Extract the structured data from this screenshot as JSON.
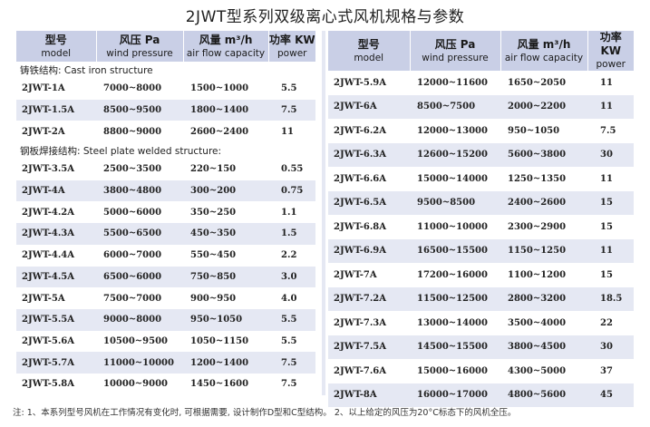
{
  "title": "2JWT型系列双级离心式风机规格与参数",
  "headers": {
    "model_zh": "型号",
    "model_en": "model",
    "pressure_zh": "风压 Pa",
    "pressure_en": "wind pressure",
    "flow_zh": "风量 m³/h",
    "flow_en": "air flow capacity",
    "power_zh": "功率 KW",
    "power_en": "power"
  },
  "left": {
    "cast_iron_label": "铸铁结构: Cast iron structure",
    "cast_iron_rows": [
      {
        "model": "2JWT-1A",
        "pressure": "7000~8000",
        "flow": "1500~1000",
        "power": "5.5"
      },
      {
        "model": "2JWT-1.5A",
        "pressure": "8500~9500",
        "flow": "1800~1400",
        "power": "7.5"
      },
      {
        "model": "2JWT-2A",
        "pressure": "8800~9000",
        "flow": "2600~2400",
        "power": "11"
      }
    ],
    "steel_label": "钢板焊接结构: Steel plate welded structure:",
    "steel_rows": [
      {
        "model": "2JWT-3.5A",
        "pressure": "2500~3500",
        "flow": "220~150",
        "power": "0.55"
      },
      {
        "model": "2JWT-4A",
        "pressure": "3800~4800",
        "flow": "300~200",
        "power": "0.75"
      },
      {
        "model": "2JWT-4.2A",
        "pressure": "5000~6000",
        "flow": "350~250",
        "power": "1.1"
      },
      {
        "model": "2JWT-4.3A",
        "pressure": "5500~6500",
        "flow": "450~350",
        "power": "1.5"
      },
      {
        "model": "2JWT-4.4A",
        "pressure": "6000~7000",
        "flow": "550~450",
        "power": "2.2"
      },
      {
        "model": "2JWT-4.5A",
        "pressure": "6500~6000",
        "flow": "750~850",
        "power": "3.0"
      },
      {
        "model": "2JWT-5A",
        "pressure": "7500~7000",
        "flow": "900~950",
        "power": "4.0"
      },
      {
        "model": "2JWT-5.5A",
        "pressure": "9000~8000",
        "flow": "950~1050",
        "power": "5.5"
      },
      {
        "model": "2JWT-5.6A",
        "pressure": "10500~9500",
        "flow": "1050~1150",
        "power": "5.5"
      },
      {
        "model": "2JWT-5.7A",
        "pressure": "11000~10000",
        "flow": "1200~1400",
        "power": "7.5"
      },
      {
        "model": "2JWT-5.8A",
        "pressure": "10000~9000",
        "flow": "1450~1600",
        "power": "7.5"
      }
    ]
  },
  "right": {
    "rows": [
      {
        "model": "2JWT-5.9A",
        "pressure": "12000~11600",
        "flow": "1650~2050",
        "power": "11"
      },
      {
        "model": "2JWT-6A",
        "pressure": "8500~7500",
        "flow": "2000~2200",
        "power": "11"
      },
      {
        "model": "2JWT-6.2A",
        "pressure": "12000~13000",
        "flow": "950~1050",
        "power": "7.5"
      },
      {
        "model": "2JWT-6.3A",
        "pressure": "12600~15200",
        "flow": "5600~3800",
        "power": "30"
      },
      {
        "model": "2JWT-6.6A",
        "pressure": "15000~14000",
        "flow": "1250~1350",
        "power": "11"
      },
      {
        "model": "2JWT-6.5A",
        "pressure": "9500~8500",
        "flow": "2400~2600",
        "power": "15"
      },
      {
        "model": "2JWT-6.8A",
        "pressure": "11000~10000",
        "flow": "2300~2900",
        "power": "15"
      },
      {
        "model": "2JWT-6.9A",
        "pressure": "16500~15500",
        "flow": "1150~1250",
        "power": "11"
      },
      {
        "model": "2JWT-7A",
        "pressure": "17200~16000",
        "flow": "1100~1200",
        "power": "15"
      },
      {
        "model": "2JWT-7.2A",
        "pressure": "11500~12500",
        "flow": "2800~3200",
        "power": "18.5"
      },
      {
        "model": "2JWT-7.3A",
        "pressure": "13000~14000",
        "flow": "3500~4000",
        "power": "22"
      },
      {
        "model": "2JWT-7.5A",
        "pressure": "14500~15500",
        "flow": "3800~4500",
        "power": "30"
      },
      {
        "model": "2JWT-7.6A",
        "pressure": "15000~16000",
        "flow": "4300~5000",
        "power": "37"
      },
      {
        "model": "2JWT-8A",
        "pressure": "16000~17000",
        "flow": "4800~5600",
        "power": "45"
      }
    ]
  },
  "note": "注: 1、本系列型号风机在工作情况有变化时, 可根据需要, 设计制作D型和C型结构。    2、以上给定的风压为20°C标态下的风机全压。"
}
